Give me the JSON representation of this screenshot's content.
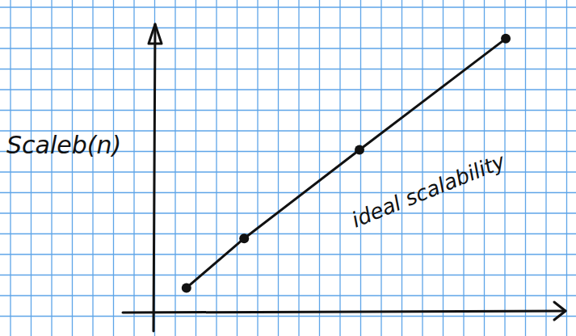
{
  "chart_data": {
    "type": "line",
    "y_label": "Scaleb(n)",
    "annotation": "ideal scalability",
    "x": [
      1.6,
      4.4,
      10,
      17.1
    ],
    "values": [
      1.2,
      3.6,
      7.9,
      13.3
    ],
    "color": "#111111",
    "marker": "circle",
    "line_style": "solid",
    "xlim": [
      0,
      20
    ],
    "ylim": [
      0,
      14
    ],
    "tick_labels": false
  }
}
